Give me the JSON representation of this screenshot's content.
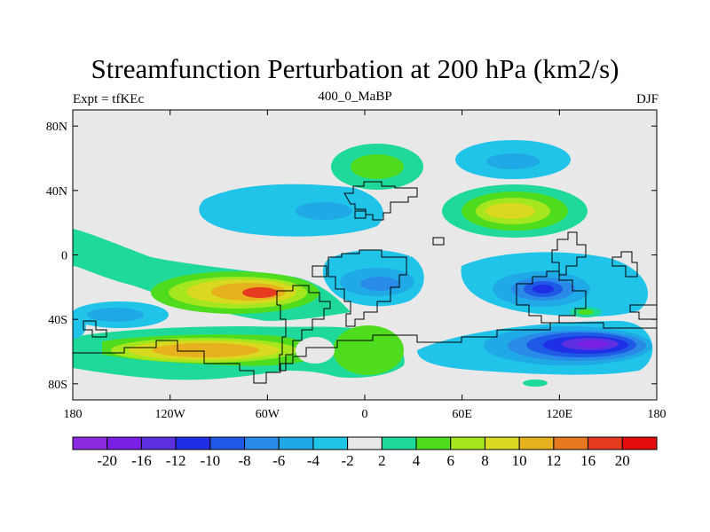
{
  "title": "Streamfunction Perturbation at 200 hPa (km2/s)",
  "left_string": "Expt = tfKEc",
  "center_string": "400_0_MaBP",
  "right_string": "DJF",
  "map": {
    "projection": "cylindrical-equidistant",
    "lon_range": [
      -180,
      180
    ],
    "lat_range": [
      -90,
      90
    ],
    "background_color": "#e8e8e8",
    "x_ticks": [
      {
        "lon": -180,
        "label": "180"
      },
      {
        "lon": -120,
        "label": "120W"
      },
      {
        "lon": -60,
        "label": "60W"
      },
      {
        "lon": 0,
        "label": "0"
      },
      {
        "lon": 60,
        "label": "60E"
      },
      {
        "lon": 120,
        "label": "120E"
      },
      {
        "lon": 180,
        "label": "180"
      }
    ],
    "y_ticks": [
      {
        "lat": 80,
        "label": "80N"
      },
      {
        "lat": 40,
        "label": "40N"
      },
      {
        "lat": 0,
        "label": "0"
      },
      {
        "lat": -40,
        "label": "40S"
      },
      {
        "lat": -80,
        "label": "80S"
      }
    ]
  },
  "colorbar": {
    "colors": [
      "#8a2be2",
      "#7a1fe6",
      "#5c2fe0",
      "#1f2fe6",
      "#1f5ae6",
      "#2a8ae8",
      "#1fa9e6",
      "#1fc4e8",
      "#e8e8e8",
      "#1fd99a",
      "#4fdc1f",
      "#a6e61f",
      "#d9d91f",
      "#e6b01f",
      "#e6781f",
      "#e63a1f",
      "#e60d0d"
    ],
    "labels": [
      "-20",
      "-16",
      "-12",
      "-10",
      "-8",
      "-6",
      "-4",
      "-2",
      "2",
      "4",
      "6",
      "8",
      "10",
      "12",
      "16",
      "20"
    ]
  },
  "chart_data": {
    "type": "heatmap",
    "title": "Streamfunction Perturbation at 200 hPa (km2/s)",
    "levels": [
      -20,
      -16,
      -12,
      -10,
      -8,
      -6,
      -4,
      -2,
      2,
      4,
      6,
      8,
      10,
      12,
      16,
      20
    ],
    "features": [
      {
        "lon": -90,
        "lat": -26,
        "peak_value": 16
      },
      {
        "lon": -85,
        "lat": -60,
        "peak_value": 12
      },
      {
        "lon": -130,
        "lat": -45,
        "peak_value": -6
      },
      {
        "lon": -48,
        "lat": 32,
        "peak_value": -6
      },
      {
        "lon": 10,
        "lat": 53,
        "peak_value": 6
      },
      {
        "lon": 95,
        "lat": 58,
        "peak_value": -6
      },
      {
        "lon": 85,
        "lat": 28,
        "peak_value": 10
      },
      {
        "lon": 115,
        "lat": -24,
        "peak_value": -12
      },
      {
        "lon": 5,
        "lat": -22,
        "peak_value": -8
      },
      {
        "lon": 140,
        "lat": -55,
        "peak_value": -20
      },
      {
        "lon": 20,
        "lat": -62,
        "peak_value": 6
      }
    ]
  }
}
